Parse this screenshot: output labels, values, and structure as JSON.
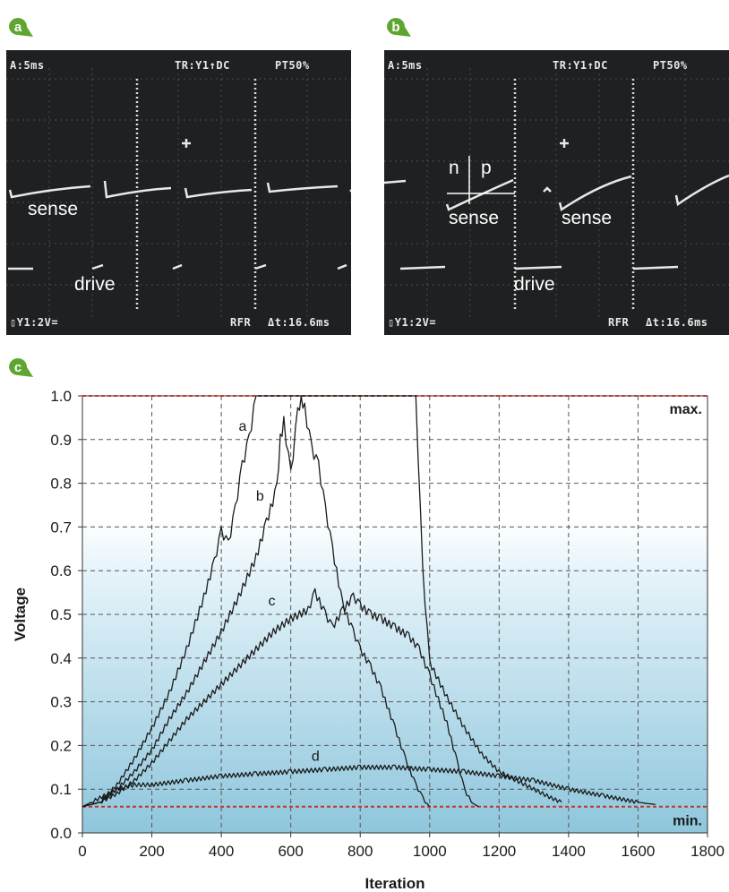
{
  "panels": [
    {
      "badge": "a",
      "osd": {
        "timebase": "A:5ms",
        "trigger": "TR:Y1↑DC",
        "pretrigger": "PT50%",
        "channel": "▯Y1:2V=",
        "mode": "RFR",
        "delta": "Δt:16.6ms"
      },
      "labels": [
        "sense",
        "drive"
      ]
    },
    {
      "badge": "b",
      "osd": {
        "timebase": "A:5ms",
        "trigger": "TR:Y1↑DC",
        "pretrigger": "PT50%",
        "channel": "▯Y1:2V=",
        "mode": "RFR",
        "delta": "Δt:16.6ms"
      },
      "labels": [
        "n",
        "p",
        "sense",
        "sense",
        "drive"
      ]
    }
  ],
  "badge_c": "c",
  "colors": {
    "badge_green": "#5fa630",
    "scope_bg": "#1e2021",
    "limit_line": "#c0392b",
    "gradient_top": "#e6f4fa",
    "gradient_bottom": "#8ec6dc"
  },
  "chart_data": {
    "type": "line",
    "xlabel": "Iteration",
    "ylabel": "Voltage",
    "xlim": [
      0,
      1800
    ],
    "ylim": [
      0,
      1.0
    ],
    "xticks": [
      0,
      200,
      400,
      600,
      800,
      1000,
      1200,
      1400,
      1600,
      1800
    ],
    "yticks": [
      "0.0",
      "0.1",
      "0.2",
      "0.3",
      "0.4",
      "0.5",
      "0.6",
      "0.7",
      "0.8",
      "0.9",
      "1.0"
    ],
    "grid": true,
    "limits": {
      "max": {
        "label": "max.",
        "value": 1.0
      },
      "min": {
        "label": "min.",
        "value": 0.06
      }
    },
    "series": [
      {
        "name": "a",
        "label_at": [
          450,
          0.92
        ],
        "points": [
          [
            0,
            0.06
          ],
          [
            50,
            0.07
          ],
          [
            100,
            0.11
          ],
          [
            150,
            0.17
          ],
          [
            200,
            0.24
          ],
          [
            250,
            0.32
          ],
          [
            300,
            0.42
          ],
          [
            350,
            0.54
          ],
          [
            380,
            0.62
          ],
          [
            400,
            0.69
          ],
          [
            420,
            0.66
          ],
          [
            440,
            0.74
          ],
          [
            460,
            0.84
          ],
          [
            480,
            0.9
          ],
          [
            500,
            1.0
          ],
          [
            950,
            1.0
          ],
          [
            960,
            1.0
          ],
          [
            980,
            0.6
          ],
          [
            1000,
            0.39
          ],
          [
            1050,
            0.31
          ],
          [
            1100,
            0.24
          ],
          [
            1150,
            0.18
          ],
          [
            1200,
            0.14
          ],
          [
            1250,
            0.12
          ],
          [
            1300,
            0.1
          ],
          [
            1350,
            0.08
          ],
          [
            1380,
            0.07
          ]
        ]
      },
      {
        "name": "b",
        "label_at": [
          500,
          0.76
        ],
        "points": [
          [
            0,
            0.06
          ],
          [
            50,
            0.07
          ],
          [
            100,
            0.1
          ],
          [
            150,
            0.14
          ],
          [
            200,
            0.19
          ],
          [
            250,
            0.26
          ],
          [
            300,
            0.32
          ],
          [
            350,
            0.39
          ],
          [
            400,
            0.46
          ],
          [
            450,
            0.54
          ],
          [
            500,
            0.63
          ],
          [
            530,
            0.71
          ],
          [
            560,
            0.79
          ],
          [
            570,
            0.9
          ],
          [
            580,
            0.94
          ],
          [
            600,
            0.82
          ],
          [
            620,
            0.96
          ],
          [
            630,
            1.0
          ],
          [
            640,
            0.97
          ],
          [
            660,
            0.88
          ],
          [
            680,
            0.84
          ],
          [
            700,
            0.74
          ],
          [
            720,
            0.65
          ],
          [
            750,
            0.52
          ],
          [
            780,
            0.46
          ],
          [
            800,
            0.42
          ],
          [
            830,
            0.38
          ],
          [
            860,
            0.33
          ],
          [
            900,
            0.24
          ],
          [
            930,
            0.17
          ],
          [
            960,
            0.11
          ],
          [
            980,
            0.08
          ],
          [
            1000,
            0.06
          ]
        ]
      },
      {
        "name": "c",
        "label_at": [
          535,
          0.52
        ],
        "points": [
          [
            0,
            0.06
          ],
          [
            50,
            0.07
          ],
          [
            100,
            0.09
          ],
          [
            150,
            0.12
          ],
          [
            200,
            0.16
          ],
          [
            250,
            0.21
          ],
          [
            300,
            0.26
          ],
          [
            350,
            0.3
          ],
          [
            400,
            0.34
          ],
          [
            450,
            0.38
          ],
          [
            500,
            0.42
          ],
          [
            550,
            0.46
          ],
          [
            600,
            0.49
          ],
          [
            650,
            0.51
          ],
          [
            670,
            0.55
          ],
          [
            700,
            0.5
          ],
          [
            720,
            0.47
          ],
          [
            750,
            0.51
          ],
          [
            780,
            0.54
          ],
          [
            800,
            0.52
          ],
          [
            830,
            0.5
          ],
          [
            860,
            0.49
          ],
          [
            900,
            0.47
          ],
          [
            940,
            0.45
          ],
          [
            970,
            0.42
          ],
          [
            1000,
            0.36
          ],
          [
            1050,
            0.25
          ],
          [
            1080,
            0.16
          ],
          [
            1100,
            0.1
          ],
          [
            1120,
            0.07
          ],
          [
            1140,
            0.06
          ]
        ]
      },
      {
        "name": "d",
        "label_at": [
          660,
          0.165
        ],
        "points": [
          [
            0,
            0.06
          ],
          [
            50,
            0.08
          ],
          [
            100,
            0.1
          ],
          [
            150,
            0.11
          ],
          [
            200,
            0.11
          ],
          [
            300,
            0.12
          ],
          [
            400,
            0.13
          ],
          [
            500,
            0.135
          ],
          [
            600,
            0.14
          ],
          [
            700,
            0.145
          ],
          [
            800,
            0.15
          ],
          [
            900,
            0.15
          ],
          [
            1000,
            0.145
          ],
          [
            1100,
            0.14
          ],
          [
            1200,
            0.13
          ],
          [
            1300,
            0.12
          ],
          [
            1400,
            0.1
          ],
          [
            1500,
            0.085
          ],
          [
            1600,
            0.07
          ],
          [
            1650,
            0.065
          ]
        ]
      }
    ]
  }
}
